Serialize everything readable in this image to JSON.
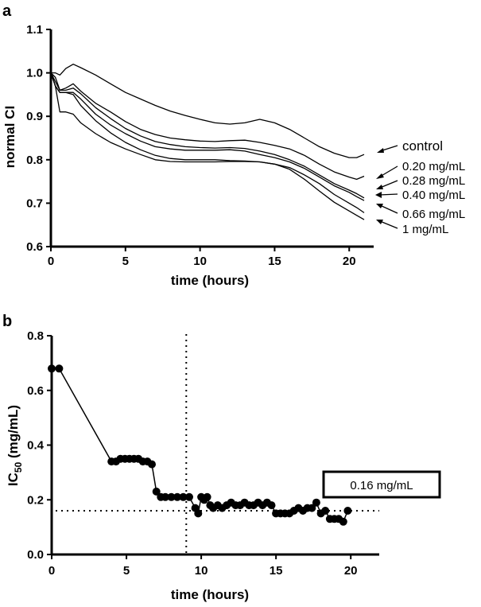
{
  "chart_data": [
    {
      "panel_label": "a",
      "type": "line",
      "title": "",
      "xlabel": "time (hours)",
      "ylabel": "normal CI",
      "xlim": [
        0,
        21
      ],
      "ylim": [
        0.6,
        1.1
      ],
      "xticks": [
        0,
        5,
        10,
        15,
        20
      ],
      "yticks": [
        0.6,
        0.7,
        0.8,
        0.9,
        1.0,
        1.1
      ],
      "xtick_labels": [
        "0",
        "5",
        "10",
        "15",
        "20"
      ],
      "ytick_labels": [
        "0.6",
        "0.7",
        "0.8",
        "0.9",
        "1.0",
        "1.1"
      ],
      "x": [
        0,
        0.3,
        0.6,
        1,
        1.5,
        2,
        3,
        4,
        5,
        6,
        7,
        8,
        9,
        10,
        11,
        12,
        13,
        14,
        15,
        16,
        17,
        18,
        19,
        20,
        20.5,
        21
      ],
      "series": [
        {
          "name": "control",
          "values": [
            1.0,
            1.0,
            0.995,
            1.01,
            1.02,
            1.012,
            0.995,
            0.975,
            0.955,
            0.94,
            0.925,
            0.912,
            0.902,
            0.893,
            0.885,
            0.882,
            0.885,
            0.893,
            0.885,
            0.87,
            0.85,
            0.83,
            0.815,
            0.805,
            0.805,
            0.812
          ]
        },
        {
          "name": "0.20 mg/mL",
          "values": [
            1.0,
            0.98,
            0.96,
            0.965,
            0.975,
            0.958,
            0.93,
            0.91,
            0.888,
            0.87,
            0.858,
            0.85,
            0.846,
            0.843,
            0.842,
            0.844,
            0.845,
            0.84,
            0.833,
            0.825,
            0.81,
            0.79,
            0.772,
            0.76,
            0.755,
            0.762
          ]
        },
        {
          "name": "0.28 mg/mL",
          "values": [
            1.0,
            0.99,
            0.96,
            0.96,
            0.965,
            0.952,
            0.92,
            0.895,
            0.872,
            0.855,
            0.842,
            0.835,
            0.83,
            0.828,
            0.827,
            0.828,
            0.826,
            0.82,
            0.812,
            0.8,
            0.785,
            0.765,
            0.745,
            0.73,
            0.722,
            0.712
          ]
        },
        {
          "name": "0.40 mg/mL",
          "values": [
            1.0,
            0.97,
            0.955,
            0.955,
            0.955,
            0.94,
            0.905,
            0.88,
            0.86,
            0.843,
            0.83,
            0.825,
            0.822,
            0.822,
            0.822,
            0.823,
            0.82,
            0.812,
            0.805,
            0.795,
            0.78,
            0.76,
            0.74,
            0.725,
            0.715,
            0.706
          ]
        },
        {
          "name": "0.66 mg/mL",
          "values": [
            1.0,
            0.97,
            0.955,
            0.955,
            0.95,
            0.925,
            0.89,
            0.862,
            0.84,
            0.823,
            0.81,
            0.803,
            0.8,
            0.8,
            0.8,
            0.798,
            0.797,
            0.795,
            0.79,
            0.782,
            0.765,
            0.745,
            0.72,
            0.7,
            0.69,
            0.678
          ]
        },
        {
          "name": "1 mg/mL",
          "values": [
            1.0,
            0.97,
            0.91,
            0.91,
            0.905,
            0.885,
            0.86,
            0.84,
            0.825,
            0.812,
            0.8,
            0.796,
            0.795,
            0.795,
            0.795,
            0.796,
            0.796,
            0.795,
            0.79,
            0.778,
            0.755,
            0.728,
            0.702,
            0.682,
            0.672,
            0.662
          ]
        }
      ],
      "legend_placement": "right"
    },
    {
      "panel_label": "b",
      "type": "line",
      "title": "",
      "xlabel": "time (hours)",
      "ylabel_main": "IC",
      "ylabel_sub": "50",
      "ylabel_tail": " (mg/mL)",
      "xlim": [
        0,
        21
      ],
      "ylim": [
        0,
        0.8
      ],
      "xticks": [
        0,
        5,
        10,
        15,
        20
      ],
      "yticks": [
        0.0,
        0.2,
        0.4,
        0.6,
        0.8
      ],
      "xtick_labels": [
        "0",
        "5",
        "10",
        "15",
        "20"
      ],
      "ytick_labels": [
        "0.0",
        "0.2",
        "0.4",
        "0.6",
        "0.8"
      ],
      "x": [
        0.0,
        0.5,
        4.0,
        4.3,
        4.6,
        4.9,
        5.2,
        5.5,
        5.8,
        6.1,
        6.4,
        6.7,
        7.0,
        7.3,
        7.6,
        8.0,
        8.4,
        8.8,
        9.2,
        9.6,
        9.8,
        10.0,
        10.2,
        10.4,
        10.6,
        10.8,
        11.1,
        11.4,
        11.7,
        12.0,
        12.3,
        12.6,
        12.9,
        13.2,
        13.5,
        13.8,
        14.1,
        14.4,
        14.7,
        15.0,
        15.3,
        15.6,
        15.9,
        16.2,
        16.5,
        16.8,
        17.1,
        17.4,
        17.7,
        18.0,
        18.3,
        18.6,
        18.9,
        19.2,
        19.5,
        19.8
      ],
      "values": [
        0.68,
        0.68,
        0.34,
        0.34,
        0.35,
        0.35,
        0.35,
        0.35,
        0.35,
        0.34,
        0.34,
        0.33,
        0.23,
        0.21,
        0.21,
        0.21,
        0.21,
        0.21,
        0.21,
        0.17,
        0.15,
        0.21,
        0.2,
        0.21,
        0.18,
        0.17,
        0.18,
        0.17,
        0.18,
        0.19,
        0.18,
        0.18,
        0.19,
        0.18,
        0.18,
        0.19,
        0.18,
        0.19,
        0.18,
        0.15,
        0.15,
        0.15,
        0.15,
        0.16,
        0.17,
        0.16,
        0.17,
        0.17,
        0.19,
        0.15,
        0.16,
        0.13,
        0.13,
        0.13,
        0.12,
        0.16
      ],
      "hline": 0.16,
      "vline": 9,
      "annotation": "0.16 mg/mL",
      "grid": false
    }
  ]
}
